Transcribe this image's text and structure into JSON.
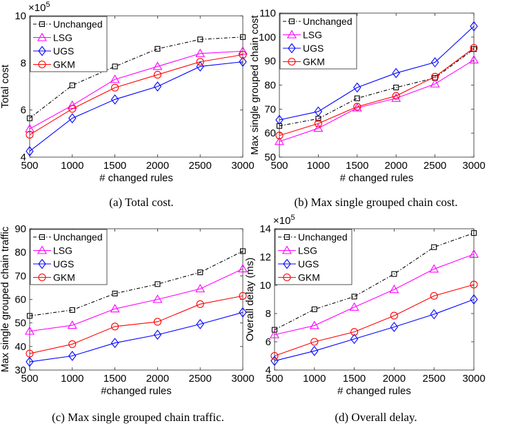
{
  "chart_data": [
    {
      "type": "line",
      "caption": "(a) Total cost.",
      "xlabel": "# changed rules",
      "ylabel": "Total cost",
      "exponent": "×10",
      "exponent_power": "5",
      "x": [
        500,
        1000,
        1500,
        2000,
        2500,
        3000
      ],
      "xlim": [
        500,
        3000
      ],
      "ylim": [
        4,
        10
      ],
      "yticks": [
        4,
        6,
        8,
        10
      ],
      "legend_position": "top-left",
      "series": [
        {
          "name": "Unchanged",
          "values": [
            5.65,
            7.05,
            7.85,
            8.6,
            9.0,
            9.1
          ]
        },
        {
          "name": "LSG",
          "values": [
            5.2,
            6.2,
            7.3,
            7.85,
            8.4,
            8.5
          ]
        },
        {
          "name": "UGS",
          "values": [
            4.25,
            5.65,
            6.45,
            7.0,
            7.85,
            8.05
          ]
        },
        {
          "name": "GKM",
          "values": [
            4.95,
            6.05,
            6.95,
            7.5,
            8.05,
            8.35
          ]
        }
      ]
    },
    {
      "type": "line",
      "caption": "(b) Max single grouped chain cost.",
      "xlabel": "# changed rules",
      "ylabel": "Max single grouped chain cost",
      "x": [
        500,
        1000,
        1500,
        2000,
        2500,
        3000
      ],
      "xlim": [
        500,
        3000
      ],
      "ylim": [
        50,
        110
      ],
      "yticks": [
        50,
        60,
        70,
        80,
        90,
        100,
        110
      ],
      "legend_position": "top-left",
      "series": [
        {
          "name": "Unchanged",
          "values": [
            63,
            66,
            74.5,
            79,
            83,
            95
          ]
        },
        {
          "name": "LSG",
          "values": [
            56.5,
            62,
            70.5,
            74.5,
            80.5,
            90.5
          ]
        },
        {
          "name": "UGS",
          "values": [
            65.5,
            69,
            79,
            85,
            89.5,
            104.5
          ]
        },
        {
          "name": "GKM",
          "values": [
            59,
            64,
            71,
            75.5,
            83.5,
            95.5
          ]
        }
      ]
    },
    {
      "type": "line",
      "caption": "(c) Max single grouped chain traffic.",
      "xlabel": "#changed rules",
      "ylabel": "Max single grouped chain traffic",
      "x": [
        500,
        1000,
        1500,
        2000,
        2500,
        3000
      ],
      "xlim": [
        500,
        3000
      ],
      "ylim": [
        30,
        90
      ],
      "yticks": [
        30,
        40,
        50,
        60,
        70,
        80,
        90
      ],
      "legend_position": "top-left",
      "series": [
        {
          "name": "Unchanged",
          "values": [
            53,
            55.5,
            62.5,
            66.5,
            71.5,
            80.5
          ]
        },
        {
          "name": "LSG",
          "values": [
            46.5,
            49,
            56,
            60,
            64.5,
            73
          ]
        },
        {
          "name": "UGS",
          "values": [
            33.5,
            36,
            41.5,
            45,
            49.5,
            54.5
          ]
        },
        {
          "name": "GKM",
          "values": [
            37,
            41,
            48.5,
            50.5,
            58,
            61.5
          ]
        }
      ]
    },
    {
      "type": "line",
      "caption": "(d) Overall delay.",
      "xlabel": "# changed rules",
      "ylabel": "Overall delay (ms)",
      "exponent": "×10",
      "exponent_power": "5",
      "x": [
        500,
        1000,
        1500,
        2000,
        2500,
        3000
      ],
      "xlim": [
        500,
        3000
      ],
      "ylim": [
        4,
        14
      ],
      "yticks": [
        4,
        6,
        8,
        10,
        12,
        14
      ],
      "legend_position": "top-left",
      "series": [
        {
          "name": "Unchanged",
          "values": [
            6.85,
            8.3,
            9.2,
            10.8,
            12.7,
            13.7
          ]
        },
        {
          "name": "LSG",
          "values": [
            6.5,
            7.15,
            8.45,
            9.7,
            11.15,
            12.2
          ]
        },
        {
          "name": "UGS",
          "values": [
            4.65,
            5.35,
            6.2,
            7.05,
            7.95,
            9.0
          ]
        },
        {
          "name": "GKM",
          "values": [
            5.0,
            6.0,
            6.7,
            7.85,
            9.25,
            10.05
          ]
        }
      ]
    }
  ],
  "styles": {
    "Unchanged": {
      "color": "#000000",
      "marker": "square",
      "dash": "dash-dot"
    },
    "LSG": {
      "color": "#ff00ff",
      "marker": "triangle",
      "dash": "solid"
    },
    "UGS": {
      "color": "#0000ff",
      "marker": "diamond",
      "dash": "solid"
    },
    "GKM": {
      "color": "#ff0000",
      "marker": "circle",
      "dash": "solid"
    }
  }
}
